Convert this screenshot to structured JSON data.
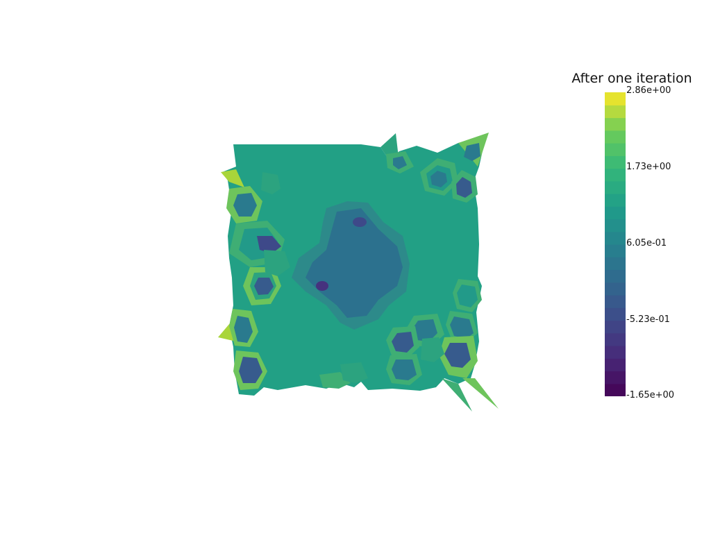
{
  "scalar_bar": {
    "title": "After one iteration",
    "range": [
      -1.65,
      2.86
    ],
    "labels": [
      "2.86e+00",
      "1.73e+00",
      "6.05e-01",
      "-5.23e-01",
      "-1.65e+00"
    ],
    "colormap": "viridis",
    "n_bands": 24
  },
  "colors": {
    "background": "#ffffff",
    "base_mesh": "#22a085",
    "ring_light": "#2ca37f",
    "ring_mid": "#3fae74",
    "ring_warm": "#6ec45c",
    "ring_hot": "#a9d53a",
    "ring_teal": "#229a89",
    "ring_blue": "#2a7a8e",
    "core_dark": "#375b8d",
    "core_deep": "#3e4989",
    "spot_min": "#46327e",
    "central_region": "#2c718e",
    "central_edge": "#2d8a8a"
  }
}
